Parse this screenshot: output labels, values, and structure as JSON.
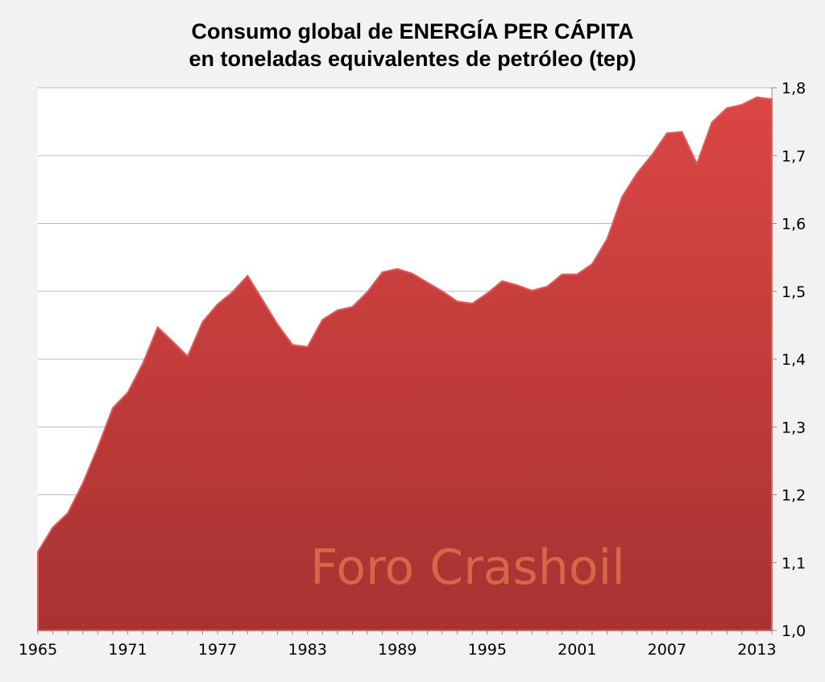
{
  "chart_data": {
    "type": "area",
    "title": [
      "Consumo global de ENERGÍA PER CÁPITA",
      "en toneladas equivalentes de petróleo (tep)"
    ],
    "xlabel": "",
    "ylabel": "",
    "x": [
      1965,
      1966,
      1967,
      1968,
      1969,
      1970,
      1971,
      1972,
      1973,
      1974,
      1975,
      1976,
      1977,
      1978,
      1979,
      1980,
      1981,
      1982,
      1983,
      1984,
      1985,
      1986,
      1987,
      1988,
      1989,
      1990,
      1991,
      1992,
      1993,
      1994,
      1995,
      1996,
      1997,
      1998,
      1999,
      2000,
      2001,
      2002,
      2003,
      2004,
      2005,
      2006,
      2007,
      2008,
      2009,
      2010,
      2011,
      2012,
      2013,
      2014
    ],
    "values": [
      1.116,
      1.152,
      1.173,
      1.217,
      1.27,
      1.328,
      1.351,
      1.393,
      1.447,
      1.426,
      1.404,
      1.455,
      1.481,
      1.499,
      1.523,
      1.487,
      1.451,
      1.421,
      1.418,
      1.458,
      1.472,
      1.477,
      1.499,
      1.528,
      1.533,
      1.526,
      1.513,
      1.5,
      1.485,
      1.482,
      1.497,
      1.515,
      1.509,
      1.501,
      1.507,
      1.525,
      1.525,
      1.54,
      1.577,
      1.639,
      1.674,
      1.701,
      1.733,
      1.735,
      1.688,
      1.749,
      1.77,
      1.775,
      1.786,
      1.783
    ],
    "x_ticks": [
      "1965",
      "1971",
      "1977",
      "1983",
      "1989",
      "1995",
      "2001",
      "2007",
      "2013"
    ],
    "y_ticks": [
      "1,0",
      "1,1",
      "1,2",
      "1,3",
      "1,4",
      "1,5",
      "1,6",
      "1,7",
      "1,8"
    ],
    "ylim": [
      1.0,
      1.8
    ],
    "y_axis_side": "right",
    "grid": true,
    "fill_color_top": "#da4644",
    "fill_color_bottom": "#a83232",
    "watermark": "Foro Crashoil"
  }
}
